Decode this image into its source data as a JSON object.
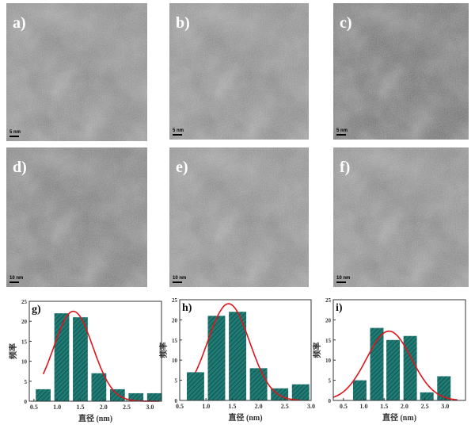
{
  "panels": [
    {
      "label": "a)",
      "scale_bar": "5 nm",
      "tone": "#8a8a8a"
    },
    {
      "label": "b)",
      "scale_bar": "5 nm",
      "tone": "#8c8c8c"
    },
    {
      "label": "c)",
      "scale_bar": "5 nm",
      "tone": "#6a6a6a"
    },
    {
      "label": "d)",
      "scale_bar": "10 nm",
      "tone": "#7a7a7a"
    },
    {
      "label": "e)",
      "scale_bar": "10 nm",
      "tone": "#8e8e8e"
    },
    {
      "label": "f)",
      "scale_bar": "10 nm",
      "tone": "#8a8a8a"
    }
  ],
  "colors": {
    "bar": "#1f7a74",
    "curve": "#e0141a"
  },
  "chart_data": [
    {
      "type": "bar",
      "panel_label": "g)",
      "xlabel": "直径 (nm)",
      "ylabel": "频率",
      "xlim": [
        0.4,
        3.25
      ],
      "ylim": [
        0,
        25
      ],
      "xticks": [
        0.5,
        1.0,
        1.5,
        2.0,
        2.5,
        3.0
      ],
      "yticks": [
        0,
        5,
        10,
        15,
        20,
        25
      ],
      "bin_centers": [
        0.7,
        1.1,
        1.5,
        1.9,
        2.3,
        2.7,
        3.1
      ],
      "bin_width": 0.32,
      "values": [
        3,
        22,
        21,
        7,
        3,
        2,
        2
      ],
      "gaussian_fit": {
        "mean": 1.35,
        "peak": 22.5,
        "sigma": 0.42,
        "range": [
          0.7,
          3.2
        ]
      }
    },
    {
      "type": "bar",
      "panel_label": "h)",
      "xlabel": "直径 (nm)",
      "ylabel": "频率",
      "xlim": [
        0.5,
        3.0
      ],
      "ylim": [
        0,
        25
      ],
      "xticks": [
        0.5,
        1.0,
        1.5,
        2.0,
        2.5,
        3.0
      ],
      "yticks": [
        0,
        5,
        10,
        15,
        20,
        25
      ],
      "bin_centers": [
        0.8,
        1.2,
        1.6,
        2.0,
        2.4,
        2.8
      ],
      "bin_width": 0.33,
      "values": [
        7,
        21,
        22,
        8,
        3,
        4
      ],
      "gaussian_fit": {
        "mean": 1.43,
        "peak": 24,
        "sigma": 0.4,
        "range": [
          0.8,
          2.8
        ]
      }
    },
    {
      "type": "bar",
      "panel_label": "i)",
      "xlabel": "直径 (nm)",
      "ylabel": "频率",
      "xlim": [
        0.25,
        3.5
      ],
      "ylim": [
        0,
        25
      ],
      "xticks": [
        0.5,
        1.0,
        1.5,
        2.0,
        2.5,
        3.0
      ],
      "yticks": [
        0,
        5,
        10,
        15,
        20,
        25
      ],
      "bin_centers": [
        0.9,
        1.32,
        1.72,
        2.14,
        2.55,
        2.97
      ],
      "bin_width": 0.33,
      "values": [
        5,
        18,
        15,
        16,
        2,
        6
      ],
      "gaussian_fit": {
        "mean": 1.62,
        "peak": 17.2,
        "sigma": 0.55,
        "range": [
          0.25,
          3.3
        ]
      }
    }
  ]
}
